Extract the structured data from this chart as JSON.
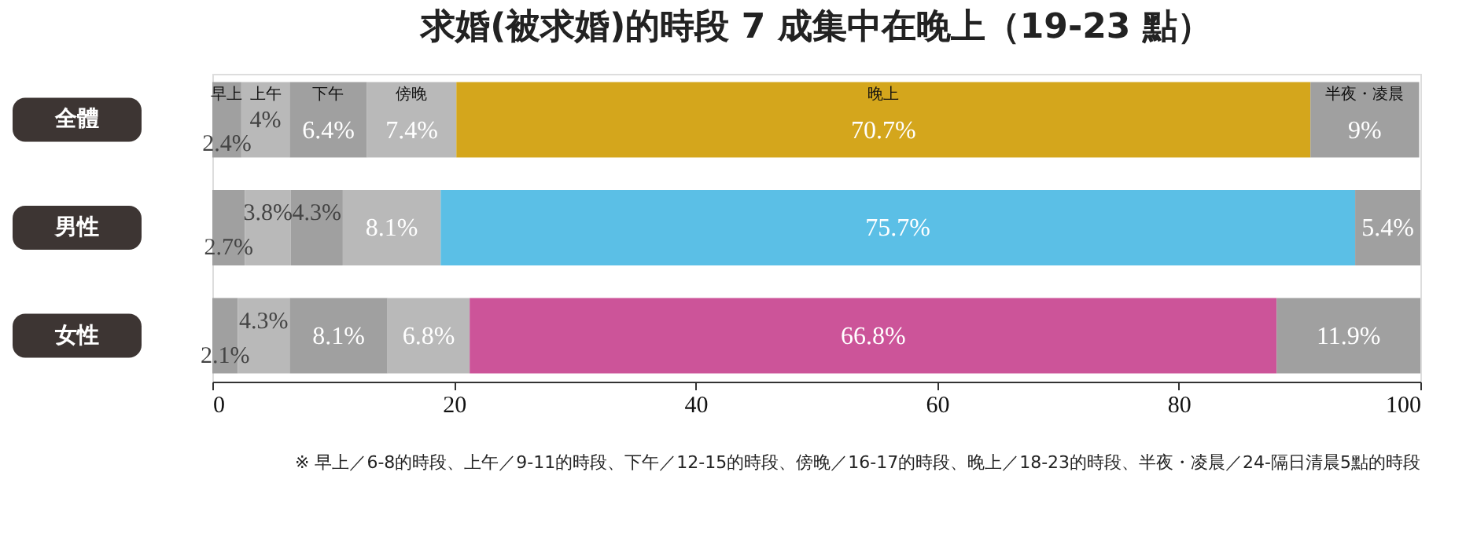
{
  "chart_data": {
    "type": "bar",
    "orientation": "horizontal",
    "stacked": true,
    "title": "求婚(被求婚)的時段 7 成集中在晚上（19-23 點）",
    "categories": [
      "全體",
      "男性",
      "女性"
    ],
    "series": [
      {
        "name": "早上",
        "color": "#a0a0a0",
        "values": [
          2.4,
          2.7,
          2.1
        ],
        "value_labels": [
          "2.4%",
          "2.7%",
          "2.1%"
        ]
      },
      {
        "name": "上午",
        "color": "#b9b9b9",
        "values": [
          4,
          3.8,
          4.3
        ],
        "value_labels": [
          "4%",
          "3.8%",
          "4.3%"
        ]
      },
      {
        "name": "下午",
        "color": "#a0a0a0",
        "values": [
          6.4,
          4.3,
          8.1
        ],
        "value_labels": [
          "6.4%",
          "4.3%",
          "8.1%"
        ]
      },
      {
        "name": "傍晚",
        "color": "#b9b9b9",
        "values": [
          7.4,
          8.1,
          6.8
        ],
        "value_labels": [
          "7.4%",
          "8.1%",
          "6.8%"
        ]
      },
      {
        "name": "晚上",
        "colors": [
          "#d4a61c",
          "#5bbfe6",
          "#cc5499"
        ],
        "values": [
          70.7,
          75.7,
          66.8
        ],
        "value_labels": [
          "70.7%",
          "75.7%",
          "66.8%"
        ]
      },
      {
        "name": "半夜・凌晨",
        "color": "#a0a0a0",
        "values": [
          9,
          5.4,
          11.9
        ],
        "value_labels": [
          "9%",
          "5.4%",
          "11.9%"
        ]
      }
    ],
    "xlim": [
      0,
      100
    ],
    "xticks": [
      0,
      20,
      40,
      60,
      80,
      100
    ],
    "grid": false,
    "annotations": [
      "※ 早上／6-8的時段、上午／9-11的時段、下午／12-15的時段、傍晚／16-17的時段、晚上／18-23的時段、半夜・凌晨／24-隔日清晨5點的時段"
    ]
  }
}
